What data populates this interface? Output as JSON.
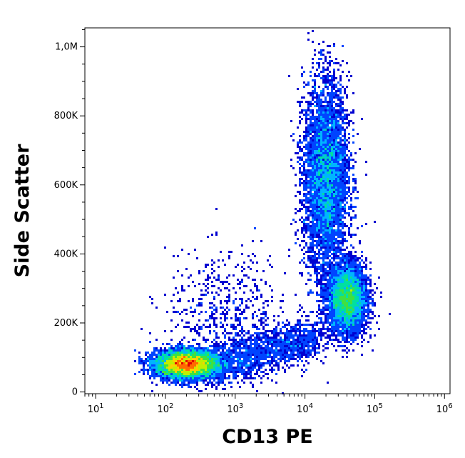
{
  "chart_data": {
    "type": "scatter",
    "subtype": "flow-cytometry-density-plot",
    "xlabel": "CD13 PE",
    "ylabel": "Side Scatter",
    "x_scale": "log",
    "xlim": [
      7,
      1200000
    ],
    "ylim": [
      -5000,
      1055000
    ],
    "x_ticks": [
      {
        "value": 10,
        "base": "10",
        "exp": "1"
      },
      {
        "value": 100,
        "base": "10",
        "exp": "2"
      },
      {
        "value": 1000,
        "base": "10",
        "exp": "3"
      },
      {
        "value": 10000,
        "base": "10",
        "exp": "4"
      },
      {
        "value": 100000,
        "base": "10",
        "exp": "5"
      },
      {
        "value": 1000000,
        "base": "10",
        "exp": "6"
      }
    ],
    "y_ticks": [
      {
        "value": 0,
        "label": "0"
      },
      {
        "value": 200000,
        "label": "200K"
      },
      {
        "value": 400000,
        "label": "400K"
      },
      {
        "value": 600000,
        "label": "600K"
      },
      {
        "value": 800000,
        "label": "800K"
      },
      {
        "value": 1000000,
        "label": "1,0M"
      }
    ],
    "grid": false,
    "colormap": [
      "#0000d0",
      "#0044ff",
      "#00b4ff",
      "#00e0a0",
      "#40e040",
      "#c0f000",
      "#ffd000",
      "#ff6a00",
      "#e00000"
    ],
    "populations": [
      {
        "x_center": 200,
        "y_center": 80000,
        "x_spread_decades": 0.22,
        "y_spread": 20000,
        "density": 1.0
      },
      {
        "x_center": 20000,
        "y_center": 620000,
        "x_spread_decades": 0.16,
        "y_spread": 140000,
        "density": 0.7
      },
      {
        "x_center": 40000,
        "y_center": 270000,
        "x_spread_decades": 0.14,
        "y_spread": 50000,
        "density": 0.55
      },
      {
        "x_center": 800,
        "y_center": 200000,
        "x_spread_decades": 0.45,
        "y_spread": 100000,
        "density": 0.08
      }
    ]
  }
}
